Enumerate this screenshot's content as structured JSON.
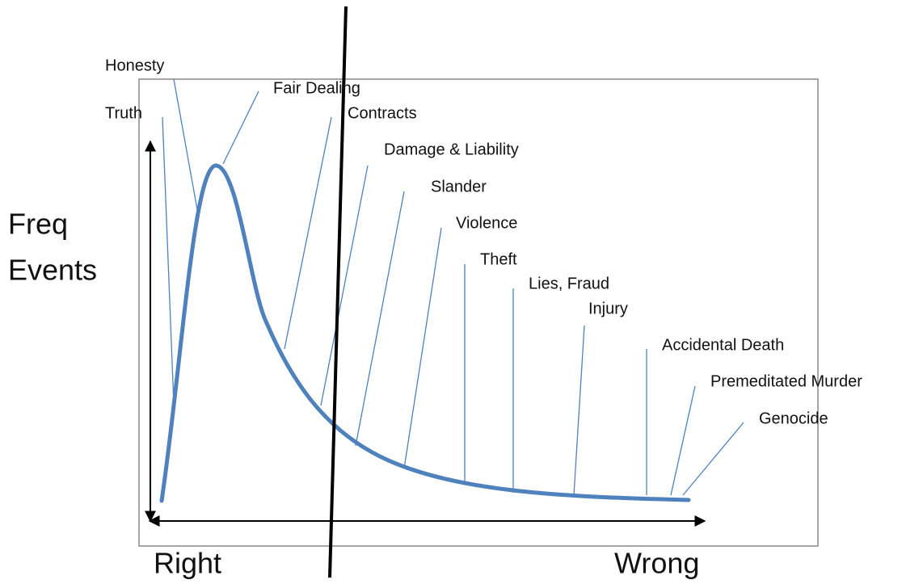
{
  "y_axis_label": [
    "Freq",
    "Events"
  ],
  "x_axis_labels": {
    "left": "Right",
    "right": "Wrong"
  },
  "labels": [
    "Honesty",
    "Truth",
    "Fair Dealing",
    "Contracts",
    "Damage & Liability",
    "Slander",
    "Violence",
    "Theft",
    "Lies, Fraud",
    "Injury",
    "Accidental Death",
    "Premeditated Murder",
    "Genocide"
  ]
}
